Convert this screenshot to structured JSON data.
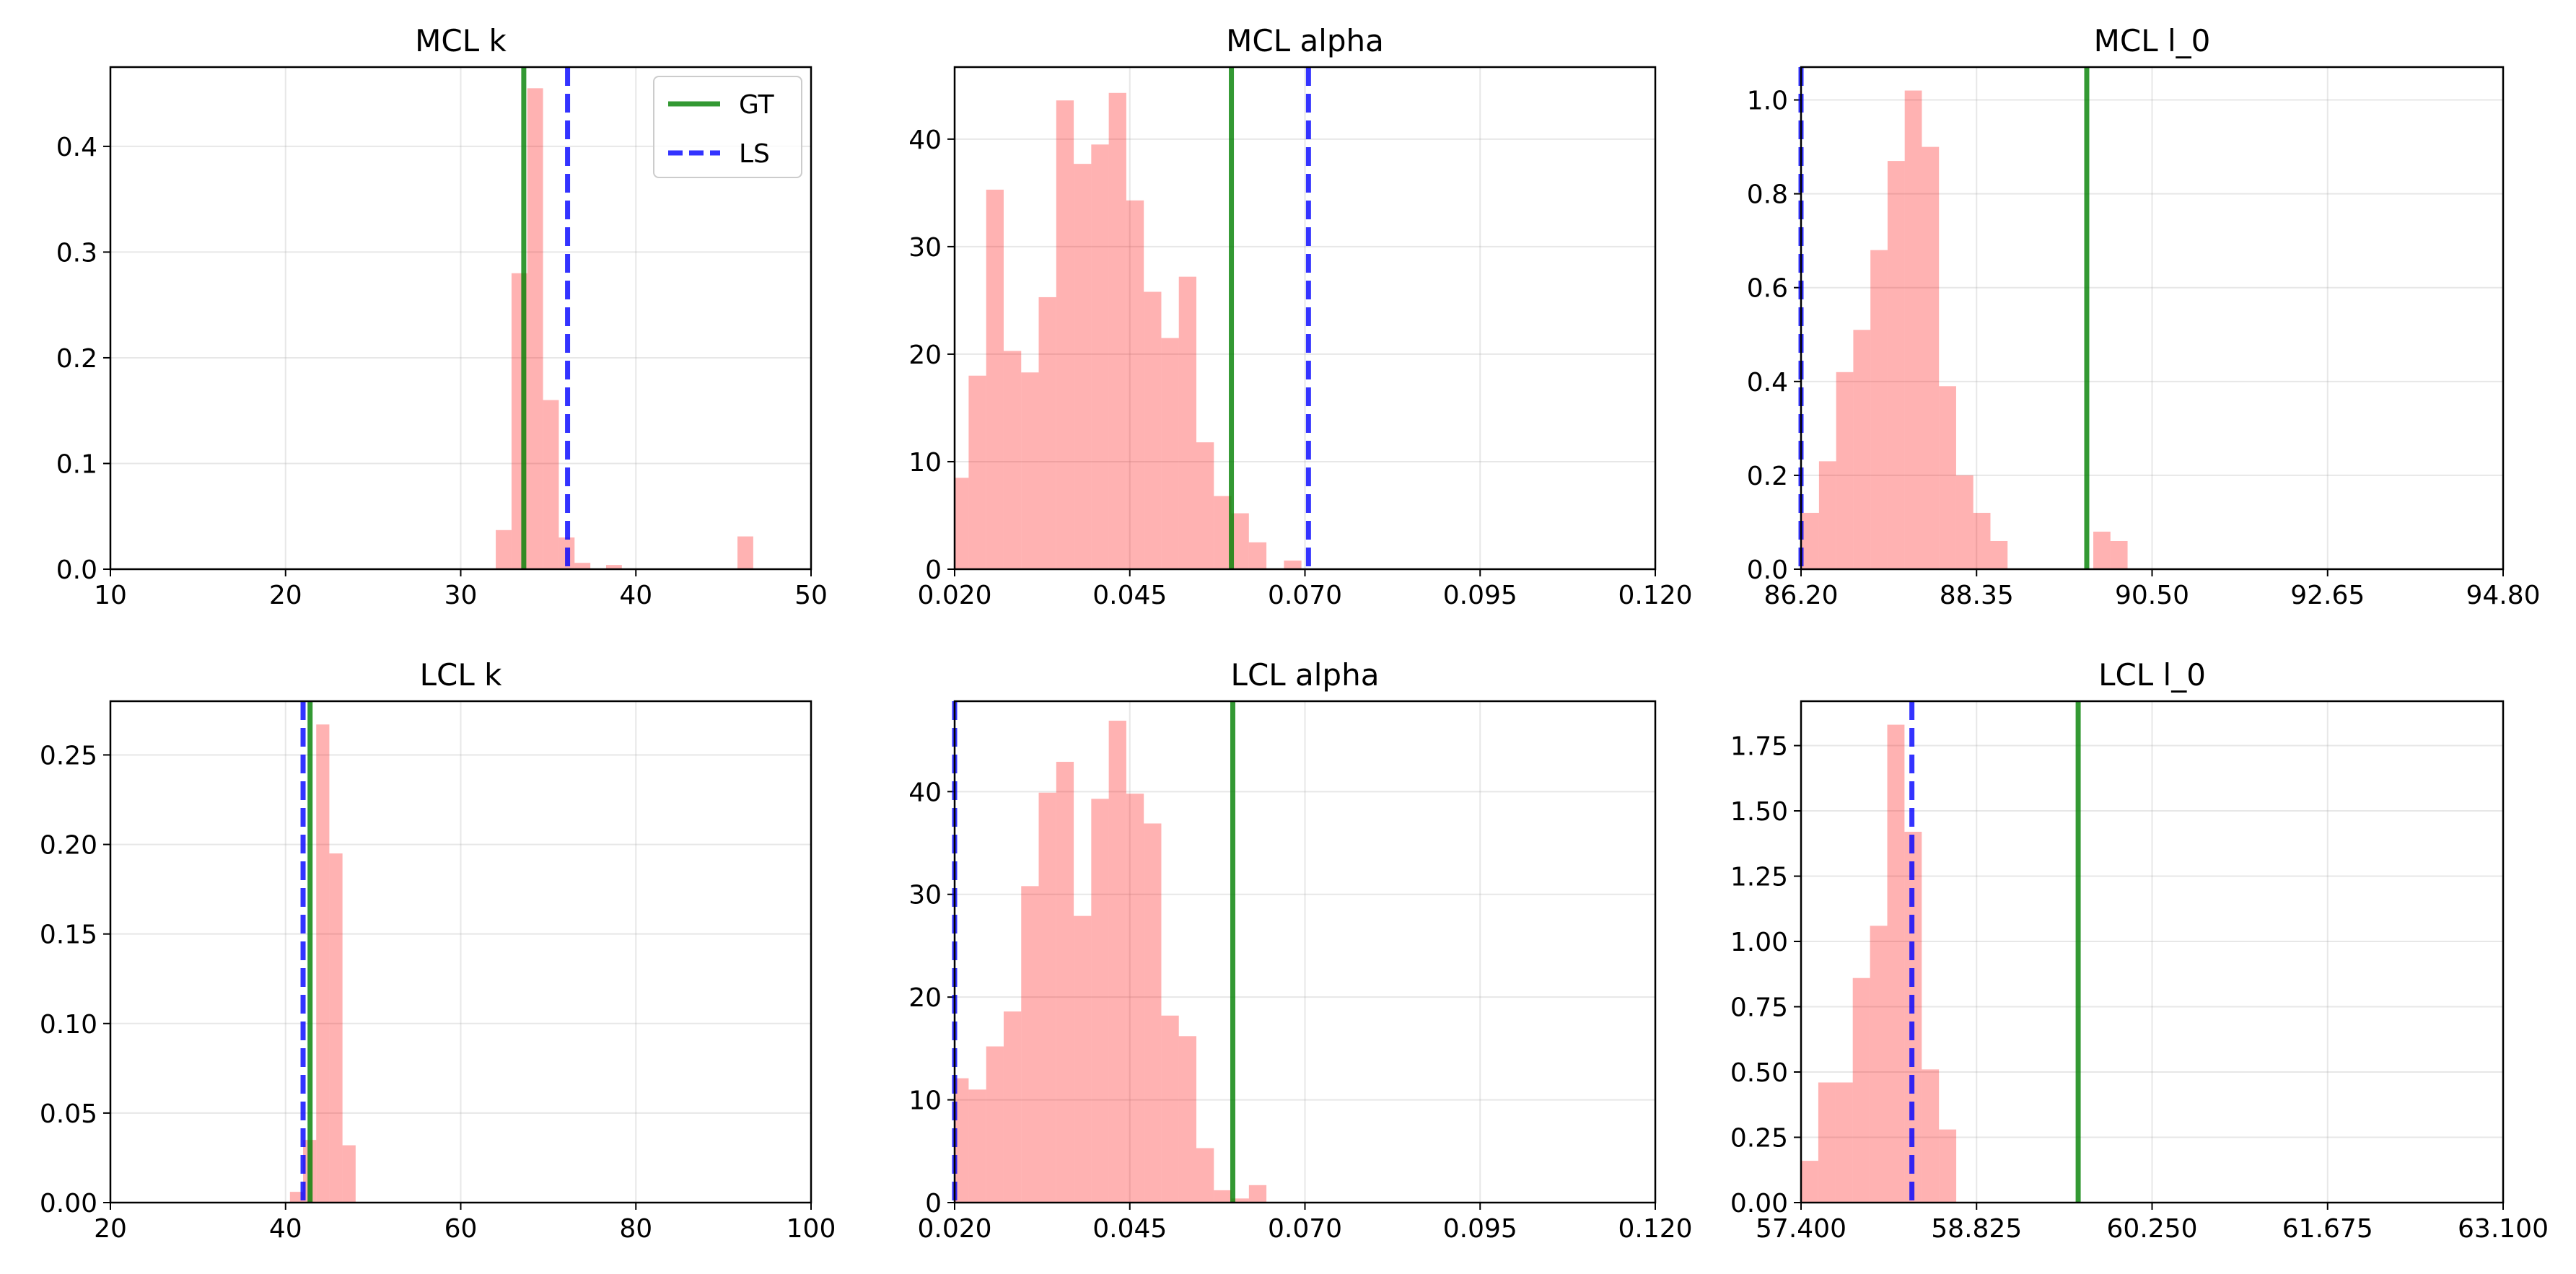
{
  "chart_data": [
    {
      "type": "histogram",
      "title": "MCL k",
      "xlim": [
        10,
        50
      ],
      "ylim": [
        0,
        0.475
      ],
      "xticks": [
        "10",
        "20",
        "30",
        "40",
        "50"
      ],
      "yticks": [
        "0.0",
        "0.1",
        "0.2",
        "0.3",
        "0.4"
      ],
      "bin_width": 0.9,
      "bins": [
        [
          32.0,
          0.037
        ],
        [
          32.9,
          0.28
        ],
        [
          33.8,
          0.455
        ],
        [
          34.7,
          0.16
        ],
        [
          35.6,
          0.03
        ],
        [
          36.5,
          0.006
        ],
        [
          38.3,
          0.004
        ],
        [
          45.8,
          0.031
        ]
      ],
      "gt": 33.6,
      "ls": 36.1,
      "legend": {
        "entries": [
          "GT",
          "LS"
        ],
        "position": "upper right"
      },
      "grid": true
    },
    {
      "type": "histogram",
      "title": "MCL alpha",
      "xlim": [
        0.02,
        0.12
      ],
      "ylim": [
        0,
        46.7
      ],
      "xticks": [
        "0.020",
        "0.045",
        "0.070",
        "0.095",
        "0.120"
      ],
      "yticks": [
        "0",
        "10",
        "20",
        "30",
        "40"
      ],
      "bin_width": 0.0025,
      "bins": [
        [
          0.0195,
          8.5
        ],
        [
          0.022,
          18
        ],
        [
          0.0245,
          35.3
        ],
        [
          0.027,
          20.3
        ],
        [
          0.0295,
          18.3
        ],
        [
          0.032,
          25.3
        ],
        [
          0.0345,
          43.6
        ],
        [
          0.037,
          37.7
        ],
        [
          0.0395,
          39.5
        ],
        [
          0.042,
          44.3
        ],
        [
          0.0445,
          34.3
        ],
        [
          0.047,
          25.8
        ],
        [
          0.0495,
          21.5
        ],
        [
          0.052,
          27.2
        ],
        [
          0.0545,
          11.8
        ],
        [
          0.057,
          6.8
        ],
        [
          0.0595,
          5.2
        ],
        [
          0.062,
          2.5
        ],
        [
          0.067,
          0.8
        ]
      ],
      "gt": 0.0595,
      "ls": 0.0705,
      "grid": true
    },
    {
      "type": "histogram",
      "title": "MCL l_0",
      "xlim": [
        86.2,
        94.8
      ],
      "ylim": [
        0,
        1.07
      ],
      "xticks": [
        "86.20",
        "88.35",
        "90.50",
        "92.65",
        "94.80"
      ],
      "yticks": [
        "0.0",
        "0.2",
        "0.4",
        "0.6",
        "0.8",
        "1.0"
      ],
      "bin_width": 0.21,
      "bins": [
        [
          86.21,
          0.12
        ],
        [
          86.42,
          0.23
        ],
        [
          86.63,
          0.42
        ],
        [
          86.84,
          0.51
        ],
        [
          87.05,
          0.68
        ],
        [
          87.26,
          0.87
        ],
        [
          87.47,
          1.02
        ],
        [
          87.68,
          0.9
        ],
        [
          87.89,
          0.39
        ],
        [
          88.1,
          0.2
        ],
        [
          88.31,
          0.12
        ],
        [
          88.52,
          0.06
        ],
        [
          89.78,
          0.08
        ],
        [
          89.99,
          0.06
        ]
      ],
      "gt": 89.7,
      "ls": 86.2,
      "grid": true
    },
    {
      "type": "histogram",
      "title": "LCL k",
      "xlim": [
        20,
        100
      ],
      "ylim": [
        0,
        0.28
      ],
      "xticks": [
        "20",
        "40",
        "60",
        "80",
        "100"
      ],
      "yticks": [
        "0.00",
        "0.05",
        "0.10",
        "0.15",
        "0.20",
        "0.25"
      ],
      "bin_width": 1.5,
      "bins": [
        [
          40.5,
          0.006
        ],
        [
          42.0,
          0.035
        ],
        [
          43.5,
          0.267
        ],
        [
          45.0,
          0.195
        ],
        [
          46.5,
          0.032
        ]
      ],
      "gt": 42.8,
      "ls": 42.0,
      "grid": true
    },
    {
      "type": "histogram",
      "title": "LCL alpha",
      "xlim": [
        0.02,
        0.12
      ],
      "ylim": [
        0,
        48.8
      ],
      "xticks": [
        "0.020",
        "0.045",
        "0.070",
        "0.095",
        "0.120"
      ],
      "yticks": [
        "0",
        "10",
        "20",
        "30",
        "40"
      ],
      "bin_width": 0.0025,
      "bins": [
        [
          0.0195,
          12.1
        ],
        [
          0.022,
          11
        ],
        [
          0.0245,
          15.2
        ],
        [
          0.027,
          18.6
        ],
        [
          0.0295,
          30.8
        ],
        [
          0.032,
          39.9
        ],
        [
          0.0345,
          42.9
        ],
        [
          0.037,
          27.9
        ],
        [
          0.0395,
          39.3
        ],
        [
          0.042,
          46.9
        ],
        [
          0.0445,
          39.8
        ],
        [
          0.047,
          36.9
        ],
        [
          0.0495,
          18.2
        ],
        [
          0.052,
          16.2
        ],
        [
          0.0545,
          5.3
        ],
        [
          0.057,
          1.2
        ],
        [
          0.0595,
          0.4
        ],
        [
          0.062,
          1.7
        ]
      ],
      "gt": 0.0597,
      "ls": 0.02,
      "grid": true
    },
    {
      "type": "histogram",
      "title": "LCL l_0",
      "xlim": [
        57.4,
        63.1
      ],
      "ylim": [
        0,
        1.92
      ],
      "xticks": [
        "57.400",
        "58.825",
        "60.250",
        "61.675",
        "63.100"
      ],
      "yticks": [
        "0.00",
        "0.25",
        "0.50",
        "0.75",
        "1.00",
        "1.25",
        "1.50",
        "1.75"
      ],
      "bin_width": 0.14,
      "bins": [
        [
          57.4,
          0.16
        ],
        [
          57.54,
          0.46
        ],
        [
          57.68,
          0.46
        ],
        [
          57.82,
          0.86
        ],
        [
          57.96,
          1.06
        ],
        [
          58.1,
          1.83
        ],
        [
          58.24,
          1.42
        ],
        [
          58.38,
          0.51
        ],
        [
          58.52,
          0.28
        ]
      ],
      "gt": 59.65,
      "ls": 58.3,
      "grid": true
    }
  ]
}
